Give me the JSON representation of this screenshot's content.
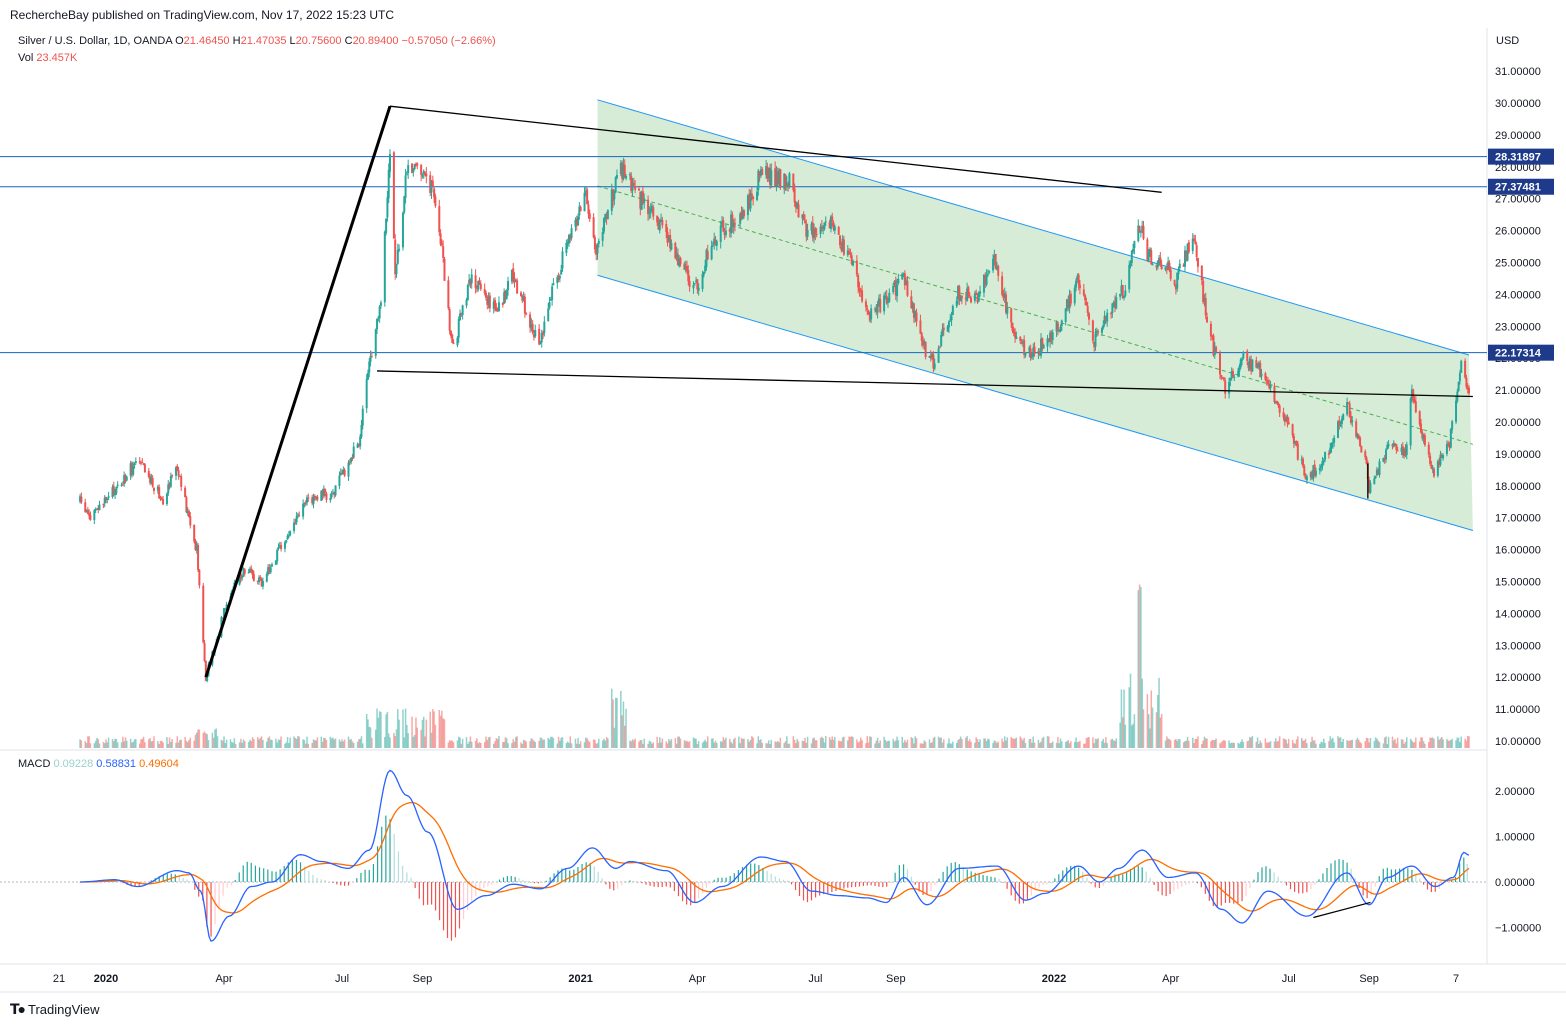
{
  "header": {
    "publish_line": "RechercheBay published on TradingView.com, Nov 17, 2022 15:23 UTC"
  },
  "legend": {
    "symbol": "Silver / U.S. Dollar, 1D, OANDA",
    "o_label": "O",
    "o_value": "21.46450",
    "h_label": "H",
    "h_value": "21.47035",
    "l_label": "L",
    "l_value": "20.75600",
    "c_label": "C",
    "c_value": "20.89400",
    "change": "−0.57050 (−2.66%)",
    "vol_label": "Vol",
    "vol_value": "23.457K",
    "macd_label": "MACD",
    "macd_hist": "0.09228",
    "macd_line": "0.58831",
    "macd_signal": "0.49604"
  },
  "footer": {
    "brand": "TradingView"
  },
  "colors": {
    "up": "#26a69a",
    "down": "#ef5350",
    "channel_line": "#2196f3",
    "channel_fill": "#c8e6c9",
    "macd_line": "#2962ff",
    "signal_line": "#ff6d00",
    "price_line_badge": "#1e3a8a"
  },
  "chart_data": [
    {
      "type": "candlestick",
      "title": "Silver / U.S. Dollar, 1D, OANDA",
      "currency": "USD",
      "x_ticks": [
        "21",
        "2020",
        "Apr",
        "Jul",
        "Sep",
        "2021",
        "Apr",
        "Jul",
        "Sep",
        "2022",
        "Apr",
        "Jul",
        "Sep",
        "7"
      ],
      "y_ticks": [
        "31.00000",
        "30.00000",
        "29.00000",
        "28.00000",
        "27.00000",
        "26.00000",
        "25.00000",
        "24.00000",
        "23.00000",
        "22.00000",
        "21.00000",
        "20.00000",
        "19.00000",
        "18.00000",
        "17.00000",
        "16.00000",
        "15.00000",
        "14.00000",
        "13.00000",
        "12.00000",
        "11.00000",
        "10.00000"
      ],
      "ylim": [
        10,
        31
      ],
      "price_lines": [
        {
          "label": "28.31897",
          "value": 28.31897
        },
        {
          "label": "27.37481",
          "value": 27.37481
        },
        {
          "label": "22.17314",
          "value": 22.17314
        }
      ],
      "price_anchors": [
        {
          "date": "2019-12-12",
          "price": 17.5
        },
        {
          "date": "2019-12-20",
          "price": 17.0
        },
        {
          "date": "2020-01-13",
          "price": 18.1
        },
        {
          "date": "2020-01-25",
          "price": 18.8
        },
        {
          "date": "2020-02-14",
          "price": 17.6
        },
        {
          "date": "2020-02-24",
          "price": 18.7
        },
        {
          "date": "2020-03-04",
          "price": 17.1
        },
        {
          "date": "2020-03-11",
          "price": 16.0
        },
        {
          "date": "2020-03-18",
          "price": 12.0
        },
        {
          "date": "2020-04-02",
          "price": 14.3
        },
        {
          "date": "2020-04-16",
          "price": 15.4
        },
        {
          "date": "2020-04-30",
          "price": 15.0
        },
        {
          "date": "2020-05-17",
          "price": 16.2
        },
        {
          "date": "2020-06-05",
          "price": 17.6
        },
        {
          "date": "2020-06-25",
          "price": 17.8
        },
        {
          "date": "2020-07-14",
          "price": 19.4
        },
        {
          "date": "2020-07-21",
          "price": 21.4
        },
        {
          "date": "2020-07-31",
          "price": 24.0
        },
        {
          "date": "2020-08-07",
          "price": 28.6
        },
        {
          "date": "2020-08-11",
          "price": 24.5
        },
        {
          "date": "2020-08-20",
          "price": 27.8
        },
        {
          "date": "2020-09-01",
          "price": 28.0
        },
        {
          "date": "2020-09-12",
          "price": 26.8
        },
        {
          "date": "2020-09-24",
          "price": 22.3
        },
        {
          "date": "2020-10-09",
          "price": 24.5
        },
        {
          "date": "2020-10-29",
          "price": 23.5
        },
        {
          "date": "2020-11-09",
          "price": 24.6
        },
        {
          "date": "2020-11-30",
          "price": 22.5
        },
        {
          "date": "2020-12-11",
          "price": 24.2
        },
        {
          "date": "2020-12-22",
          "price": 25.6
        },
        {
          "date": "2021-01-05",
          "price": 27.2
        },
        {
          "date": "2021-01-13",
          "price": 25.4
        },
        {
          "date": "2021-02-01",
          "price": 28.0
        },
        {
          "date": "2021-02-13",
          "price": 27.1
        },
        {
          "date": "2021-03-01",
          "price": 26.4
        },
        {
          "date": "2021-03-30",
          "price": 24.1
        },
        {
          "date": "2021-04-14",
          "price": 25.8
        },
        {
          "date": "2021-05-06",
          "price": 26.5
        },
        {
          "date": "2021-05-20",
          "price": 27.8
        },
        {
          "date": "2021-06-12",
          "price": 27.5
        },
        {
          "date": "2021-06-24",
          "price": 25.9
        },
        {
          "date": "2021-07-12",
          "price": 26.3
        },
        {
          "date": "2021-07-27",
          "price": 25.2
        },
        {
          "date": "2021-08-10",
          "price": 23.3
        },
        {
          "date": "2021-08-25",
          "price": 23.9
        },
        {
          "date": "2021-09-07",
          "price": 24.5
        },
        {
          "date": "2021-09-22",
          "price": 22.4
        },
        {
          "date": "2021-09-30",
          "price": 21.9
        },
        {
          "date": "2021-10-19",
          "price": 24.1
        },
        {
          "date": "2021-11-03",
          "price": 23.8
        },
        {
          "date": "2021-11-15",
          "price": 25.3
        },
        {
          "date": "2021-12-01",
          "price": 22.6
        },
        {
          "date": "2021-12-16",
          "price": 22.1
        },
        {
          "date": "2022-01-04",
          "price": 23.0
        },
        {
          "date": "2022-01-20",
          "price": 24.4
        },
        {
          "date": "2022-02-01",
          "price": 22.5
        },
        {
          "date": "2022-02-15",
          "price": 23.6
        },
        {
          "date": "2022-02-25",
          "price": 24.2
        },
        {
          "date": "2022-03-08",
          "price": 26.2
        },
        {
          "date": "2022-03-15",
          "price": 25.2
        },
        {
          "date": "2022-03-28",
          "price": 25.0
        },
        {
          "date": "2022-04-05",
          "price": 24.4
        },
        {
          "date": "2022-04-18",
          "price": 25.8
        },
        {
          "date": "2022-05-02",
          "price": 22.6
        },
        {
          "date": "2022-05-13",
          "price": 21.1
        },
        {
          "date": "2022-05-27",
          "price": 22.0
        },
        {
          "date": "2022-06-13",
          "price": 21.5
        },
        {
          "date": "2022-07-01",
          "price": 19.8
        },
        {
          "date": "2022-07-14",
          "price": 18.3
        },
        {
          "date": "2022-07-26",
          "price": 18.6
        },
        {
          "date": "2022-08-15",
          "price": 20.5
        },
        {
          "date": "2022-08-29",
          "price": 18.9
        },
        {
          "date": "2022-09-01",
          "price": 17.8
        },
        {
          "date": "2022-09-16",
          "price": 19.3
        },
        {
          "date": "2022-09-29",
          "price": 19.0
        },
        {
          "date": "2022-10-04",
          "price": 20.9
        },
        {
          "date": "2022-10-20",
          "price": 18.4
        },
        {
          "date": "2022-11-02",
          "price": 19.4
        },
        {
          "date": "2022-11-11",
          "price": 21.7
        },
        {
          "date": "2022-11-17",
          "price": 20.9
        }
      ],
      "drawings": {
        "trendlines": [
          {
            "from": {
              "date": "2020-03-18",
              "price": 12.0
            },
            "to": {
              "date": "2020-08-07",
              "price": 29.9
            },
            "color": "#000000",
            "width": 3
          },
          {
            "from": {
              "date": "2020-08-07",
              "price": 29.9
            },
            "to": {
              "date": "2022-03-25",
              "price": 27.2
            },
            "color": "#000000",
            "width": 1.3
          },
          {
            "from": {
              "date": "2020-07-28",
              "price": 21.6
            },
            "to": {
              "date": "2022-11-20",
              "price": 20.8
            },
            "color": "#000000",
            "width": 1.3
          },
          {
            "from": {
              "date": "2022-08-31",
              "price": 17.6
            },
            "to": {
              "date": "2022-08-31",
              "price": 18.7
            },
            "color": "#000000",
            "width": 1.3
          }
        ],
        "channel": {
          "upper": [
            {
              "date": "2021-01-14",
              "price": 30.1
            },
            {
              "date": "2022-11-17",
              "price": 22.1
            }
          ],
          "lower": [
            {
              "date": "2021-01-14",
              "price": 24.6
            },
            {
              "date": "2022-11-20",
              "price": 16.6
            }
          ],
          "mid": [
            {
              "date": "2021-01-14",
              "price": 27.4
            },
            {
              "date": "2022-11-20",
              "price": 19.3
            }
          ],
          "fill": "#c8e6c9",
          "stroke": "#2196f3"
        }
      }
    },
    {
      "type": "bar",
      "title": "Vol",
      "series": [
        {
          "name": "Vol",
          "last_value": "23.457K"
        }
      ],
      "note": "volume bars along bottom of price pane, spike around Mar 2022"
    },
    {
      "type": "line",
      "title": "MACD",
      "y_ticks": [
        "2.00000",
        "1.00000",
        "0.00000",
        "−1.00000"
      ],
      "ylim": [
        -1.5,
        2.7
      ],
      "series": [
        {
          "name": "MACD",
          "color": "#2962ff",
          "last": 0.58831
        },
        {
          "name": "Signal",
          "color": "#ff6d00",
          "last": 0.49604
        },
        {
          "name": "Histogram",
          "last": 0.09228
        }
      ],
      "macd_anchors": [
        {
          "date": "2019-12-12",
          "value": 0.0
        },
        {
          "date": "2020-01-08",
          "value": 0.05
        },
        {
          "date": "2020-01-25",
          "value": -0.1
        },
        {
          "date": "2020-02-25",
          "value": 0.25
        },
        {
          "date": "2020-03-05",
          "value": 0.2
        },
        {
          "date": "2020-03-14",
          "value": -0.2
        },
        {
          "date": "2020-03-22",
          "value": -1.3
        },
        {
          "date": "2020-04-05",
          "value": -0.75
        },
        {
          "date": "2020-04-22",
          "value": -0.1
        },
        {
          "date": "2020-05-08",
          "value": 0.0
        },
        {
          "date": "2020-05-30",
          "value": 0.6
        },
        {
          "date": "2020-06-15",
          "value": 0.45
        },
        {
          "date": "2020-07-06",
          "value": 0.3
        },
        {
          "date": "2020-07-22",
          "value": 0.7
        },
        {
          "date": "2020-08-07",
          "value": 2.45
        },
        {
          "date": "2020-08-20",
          "value": 1.9
        },
        {
          "date": "2020-09-05",
          "value": 1.1
        },
        {
          "date": "2020-09-28",
          "value": -0.6
        },
        {
          "date": "2020-10-20",
          "value": -0.3
        },
        {
          "date": "2020-11-10",
          "value": -0.05
        },
        {
          "date": "2020-12-01",
          "value": -0.15
        },
        {
          "date": "2020-12-22",
          "value": 0.3
        },
        {
          "date": "2021-01-10",
          "value": 0.75
        },
        {
          "date": "2021-01-28",
          "value": 0.3
        },
        {
          "date": "2021-02-08",
          "value": 0.45
        },
        {
          "date": "2021-03-08",
          "value": 0.25
        },
        {
          "date": "2021-03-30",
          "value": -0.45
        },
        {
          "date": "2021-04-20",
          "value": -0.1
        },
        {
          "date": "2021-05-20",
          "value": 0.55
        },
        {
          "date": "2021-06-08",
          "value": 0.45
        },
        {
          "date": "2021-06-28",
          "value": -0.2
        },
        {
          "date": "2021-07-20",
          "value": -0.3
        },
        {
          "date": "2021-08-10",
          "value": -0.35
        },
        {
          "date": "2021-08-25",
          "value": -0.45
        },
        {
          "date": "2021-09-07",
          "value": 0.1
        },
        {
          "date": "2021-09-25",
          "value": -0.5
        },
        {
          "date": "2021-10-20",
          "value": 0.3
        },
        {
          "date": "2021-11-18",
          "value": 0.35
        },
        {
          "date": "2021-12-10",
          "value": -0.4
        },
        {
          "date": "2021-12-25",
          "value": -0.25
        },
        {
          "date": "2022-01-20",
          "value": 0.35
        },
        {
          "date": "2022-02-05",
          "value": 0.0
        },
        {
          "date": "2022-02-20",
          "value": 0.3
        },
        {
          "date": "2022-03-10",
          "value": 0.7
        },
        {
          "date": "2022-03-30",
          "value": 0.1
        },
        {
          "date": "2022-04-20",
          "value": 0.2
        },
        {
          "date": "2022-05-10",
          "value": -0.6
        },
        {
          "date": "2022-05-26",
          "value": -0.9
        },
        {
          "date": "2022-06-15",
          "value": -0.2
        },
        {
          "date": "2022-07-15",
          "value": -0.75
        },
        {
          "date": "2022-08-15",
          "value": 0.2
        },
        {
          "date": "2022-09-01",
          "value": -0.5
        },
        {
          "date": "2022-09-15",
          "value": 0.1
        },
        {
          "date": "2022-10-04",
          "value": 0.35
        },
        {
          "date": "2022-10-22",
          "value": -0.1
        },
        {
          "date": "2022-11-05",
          "value": 0.1
        },
        {
          "date": "2022-11-13",
          "value": 0.65
        },
        {
          "date": "2022-11-17",
          "value": 0.58831
        }
      ],
      "divergence_line": {
        "from": {
          "date": "2022-07-20",
          "value": -0.78
        },
        "to": {
          "date": "2022-09-02",
          "value": -0.45
        }
      }
    }
  ]
}
